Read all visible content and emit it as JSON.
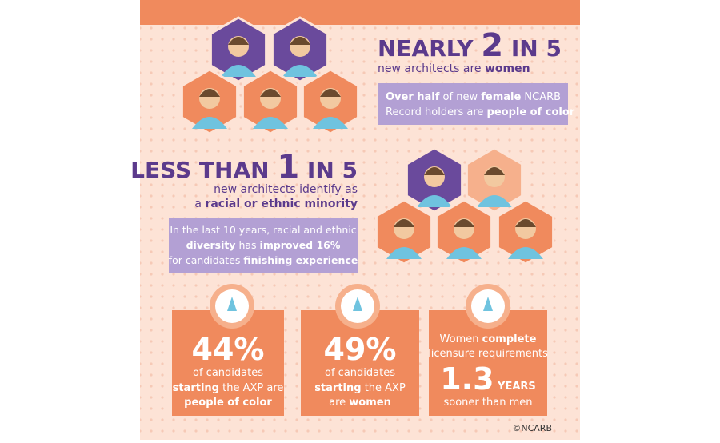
{
  "women": {
    "headline": {
      "prefix": "NEARLY ",
      "number": "2",
      "suffix": " IN 5"
    },
    "sub": [
      [
        {
          "text": "new architects are "
        },
        {
          "text": "women",
          "bold": true
        }
      ]
    ],
    "callout": [
      [
        {
          "text": "Over half",
          "bold": true
        },
        {
          "text": " of new "
        },
        {
          "text": "female",
          "bold": true
        },
        {
          "text": " NCARB"
        }
      ],
      [
        {
          "text": "Record holders are "
        },
        {
          "text": "people of color",
          "bold": true
        }
      ]
    ]
  },
  "minority": {
    "headline": {
      "prefix": "LESS THAN ",
      "number": "1",
      "suffix": " IN 5"
    },
    "sub": [
      [
        {
          "text": "new architects identify as"
        }
      ],
      [
        {
          "text": "a "
        },
        {
          "text": "racial or ethnic minority",
          "bold": true
        }
      ]
    ],
    "callout": [
      [
        {
          "text": "In the last 10 years, racial and ethnic"
        }
      ],
      [
        {
          "text": "diversity",
          "bold": true
        },
        {
          "text": " has "
        },
        {
          "text": "improved 16%",
          "bold": true
        }
      ],
      [
        {
          "text": "for candidates "
        },
        {
          "text": "finishing experience",
          "bold": true
        }
      ]
    ]
  },
  "cards": [
    {
      "lines": [
        [
          {
            "text": "44%",
            "big": true
          }
        ],
        [
          {
            "text": "of candidates"
          }
        ],
        [
          {
            "text": "starting",
            "bold": true
          },
          {
            "text": " the AXP are"
          }
        ],
        [
          {
            "text": "people of color",
            "bold": true
          }
        ]
      ]
    },
    {
      "lines": [
        [
          {
            "text": "49%",
            "big": true
          }
        ],
        [
          {
            "text": "of candidates"
          }
        ],
        [
          {
            "text": "starting",
            "bold": true
          },
          {
            "text": " the AXP"
          }
        ],
        [
          {
            "text": "are "
          },
          {
            "text": "women",
            "bold": true
          }
        ]
      ]
    },
    {
      "lines": [
        [
          {
            "text": "Women "
          },
          {
            "text": "complete",
            "bold": true
          }
        ],
        [
          {
            "text": "licensure requirements"
          }
        ],
        [
          {
            "text": "1.3",
            "big": true
          },
          {
            "text": " YEARS",
            "bold": true
          }
        ],
        [
          {
            "text": "sooner than men"
          }
        ]
      ]
    }
  ],
  "footer": "©NCARB"
}
